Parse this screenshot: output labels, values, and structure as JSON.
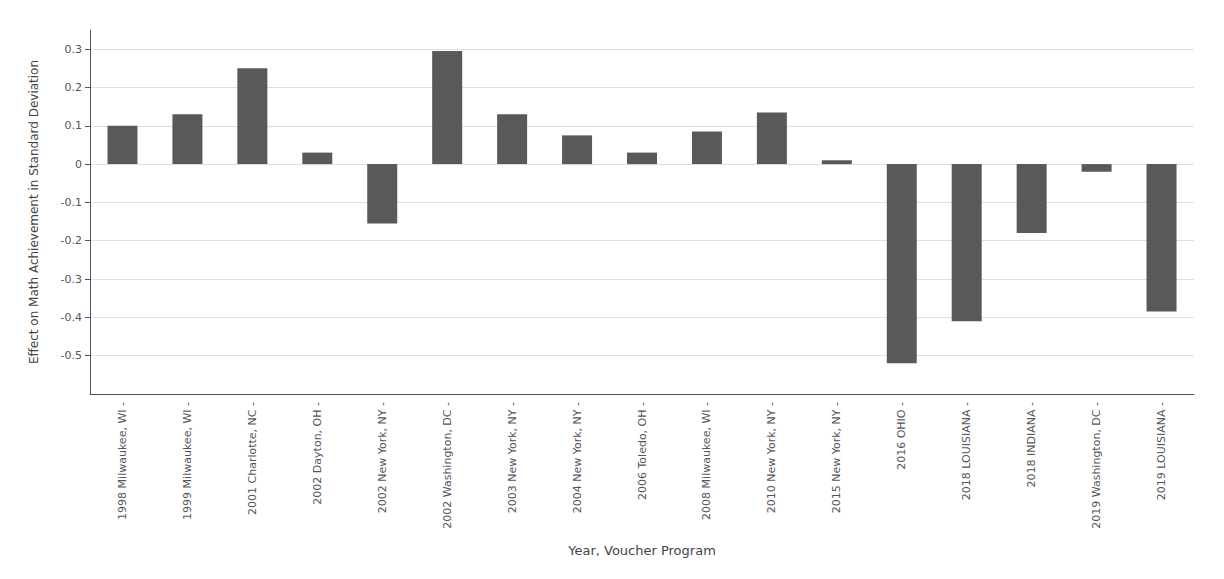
{
  "chart_data": {
    "type": "bar",
    "categories": [
      "1998 Milwaukee, WI -",
      "1999 Milwaukee, WI -",
      "2001 Charlotte, NC -",
      "2002 Dayton, OH -",
      "2002 New York, NY -",
      "2002 Washington, DC -",
      "2003 New York, NY -",
      "2004 New York, NY -",
      "2006 Toledo, OH -",
      "2008 Milwaukee, WI -",
      "2010 New York, NY -",
      "2015 New York, NY -",
      "2016 OHIO -",
      "2018 LOUISIANA -",
      "2018 INDIANA -",
      "2019 Washington, DC -",
      "2019 LOUISIANA -"
    ],
    "values": [
      0.1,
      0.13,
      0.25,
      0.03,
      -0.155,
      0.295,
      0.13,
      0.075,
      0.03,
      0.085,
      0.135,
      0.01,
      -0.52,
      -0.41,
      -0.18,
      -0.02,
      -0.385
    ],
    "color": "#595959",
    "xlabel": "Year, Voucher Program",
    "ylabel": "Effect on Math Achievement in Standard Deviation",
    "ylim": [
      -0.6,
      0.35
    ],
    "yticks": [
      -0.5,
      -0.4,
      -0.3,
      -0.2,
      -0.1,
      0,
      0.1,
      0.2,
      0.3
    ],
    "grid": true
  }
}
